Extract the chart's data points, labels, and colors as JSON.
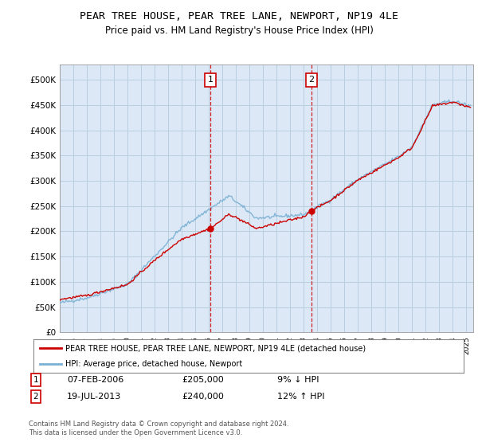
{
  "title": "PEAR TREE HOUSE, PEAR TREE LANE, NEWPORT, NP19 4LE",
  "subtitle": "Price paid vs. HM Land Registry's House Price Index (HPI)",
  "yticks": [
    0,
    50000,
    100000,
    150000,
    200000,
    250000,
    300000,
    350000,
    400000,
    450000,
    500000
  ],
  "ytick_labels": [
    "£0",
    "£50K",
    "£100K",
    "£150K",
    "£200K",
    "£250K",
    "£300K",
    "£350K",
    "£400K",
    "£450K",
    "£500K"
  ],
  "xlim_start": 1995.0,
  "xlim_end": 2025.5,
  "ylim": [
    0,
    530000
  ],
  "background_color": "#ffffff",
  "plot_bg_color": "#dce8f5",
  "grid_color": "#b8cfe0",
  "hpi_color": "#7ab0d4",
  "price_color": "#cc0000",
  "sale1_x": 2006.1,
  "sale1_y": 205000,
  "sale2_x": 2013.55,
  "sale2_y": 240000,
  "legend_label1": "PEAR TREE HOUSE, PEAR TREE LANE, NEWPORT, NP19 4LE (detached house)",
  "legend_label2": "HPI: Average price, detached house, Newport",
  "table_row1": [
    "1",
    "07-FEB-2006",
    "£205,000",
    "9% ↓ HPI"
  ],
  "table_row2": [
    "2",
    "19-JUL-2013",
    "£240,000",
    "12% ↑ HPI"
  ],
  "footnote": "Contains HM Land Registry data © Crown copyright and database right 2024.\nThis data is licensed under the Open Government Licence v3.0."
}
